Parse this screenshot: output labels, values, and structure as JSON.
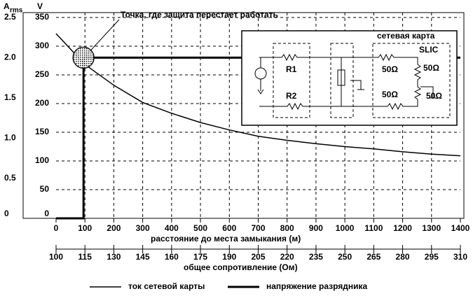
{
  "chart_data": {
    "type": "line",
    "annotation": "Точка, где защита перестает работать",
    "x_label": "расстояние до места замыкания (м)",
    "x2_label": "общее сопротивление (Ом)",
    "y_label": "V",
    "y2_label": {
      "main": "A",
      "sub": "rms"
    },
    "xlim": [
      0,
      1400
    ],
    "xticks": [
      0,
      100,
      200,
      300,
      400,
      500,
      600,
      700,
      800,
      900,
      1000,
      1100,
      1200,
      1300,
      1400
    ],
    "x2lim": [
      100,
      310
    ],
    "x2ticks": [
      100,
      115,
      130,
      145,
      160,
      175,
      190,
      205,
      220,
      235,
      250,
      265,
      280,
      295,
      310
    ],
    "ylim": [
      0,
      350
    ],
    "yticks": [
      0,
      50,
      100,
      150,
      200,
      250,
      300,
      350
    ],
    "y2lim": [
      0,
      2.5
    ],
    "y2ticks": [
      0,
      0.5,
      {
        "value": 1,
        "label": "1.0"
      },
      1.5,
      {
        "value": 2,
        "label": "2.0"
      },
      2.5
    ],
    "grid": true,
    "series": [
      {
        "name": "ток сетевой карты",
        "color": "#000000",
        "width": 1.5,
        "x": [
          0,
          50,
          100,
          200,
          300,
          400,
          500,
          600,
          700,
          800,
          900,
          1000,
          1100,
          1200,
          1300,
          1400
        ],
        "values": [
          322,
          295,
          268,
          232,
          202,
          183,
          167,
          154,
          143,
          136,
          130,
          125,
          121,
          116,
          112,
          109
        ]
      },
      {
        "name": "напряжение разрядника",
        "color": "#000000",
        "width": 3,
        "x": [
          0,
          95,
          95,
          1400
        ],
        "values": [
          0,
          0,
          280,
          280
        ]
      }
    ],
    "inset": {
      "title": "сетевая карта",
      "chip": "SLIC",
      "r1": "R1",
      "r2": "R2",
      "resistors": [
        "50Ω",
        "50Ω",
        "50Ω",
        "50Ω"
      ]
    }
  }
}
